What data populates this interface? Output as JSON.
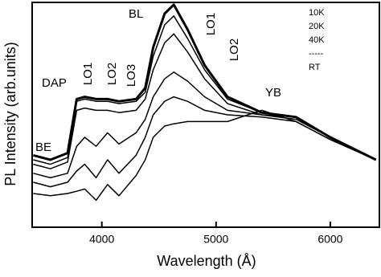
{
  "chart_data": {
    "type": "line",
    "x_label": "Wavelength (Å)",
    "y_label": "PL Intensity (arb.units)",
    "x": [
      3400,
      3550,
      3700,
      3780,
      3850,
      3950,
      4050,
      4150,
      4300,
      4380,
      4450,
      4550,
      4630,
      4750,
      4900,
      5100,
      5400,
      5700,
      6000,
      6400
    ],
    "series": [
      {
        "name": "10K",
        "color": "#000000",
        "values": [
          32,
          30,
          33,
          57,
          58,
          57,
          57,
          56,
          57,
          62,
          80,
          95,
          99,
          88,
          72,
          58,
          51,
          49,
          40,
          30
        ]
      },
      {
        "name": "20K",
        "color": "#000000",
        "values": [
          30,
          28,
          31,
          56,
          57,
          56,
          56,
          55,
          56,
          60,
          76,
          90,
          94,
          84,
          70,
          57,
          51,
          49,
          40,
          30
        ]
      },
      {
        "name": "40K",
        "color": "#000000",
        "values": [
          28,
          26,
          29,
          52,
          53,
          52,
          52,
          51,
          52,
          57,
          70,
          82,
          86,
          78,
          66,
          55,
          50,
          49,
          40,
          30
        ]
      },
      {
        "color": "#000000",
        "values": [
          24,
          22,
          24,
          36,
          40,
          36,
          42,
          37,
          42,
          48,
          58,
          66,
          69,
          65,
          58,
          52,
          50,
          48,
          40,
          30
        ]
      },
      {
        "color": "#000000",
        "values": [
          20,
          18,
          20,
          25,
          28,
          22,
          30,
          24,
          32,
          40,
          50,
          56,
          58,
          56,
          52,
          50,
          49,
          47,
          39,
          30
        ]
      },
      {
        "name": "RT",
        "color": "#000000",
        "values": [
          15,
          14,
          15,
          16,
          17,
          12,
          19,
          14,
          23,
          30,
          40,
          45,
          46,
          47,
          47,
          47,
          52,
          47,
          39,
          30
        ]
      }
    ],
    "legend_ellipsis": "-----",
    "annotations": [
      "BE",
      "DAP",
      "LO1",
      "LO2",
      "LO3",
      "BL",
      "LO1",
      "LO2",
      "YB"
    ],
    "xlim": [
      3390,
      6430
    ],
    "ylim": [
      0,
      100
    ],
    "xticks": [
      4000,
      5000,
      6000
    ]
  }
}
